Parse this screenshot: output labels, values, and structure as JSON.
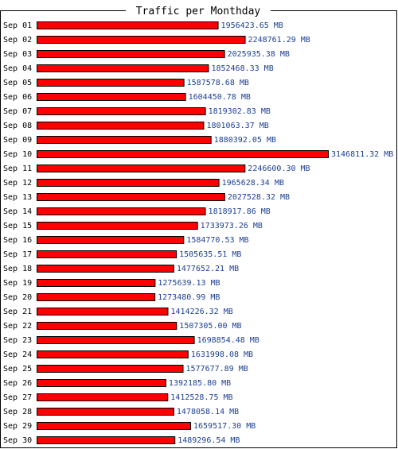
{
  "chart_data": {
    "type": "bar",
    "orientation": "horizontal",
    "title": "Traffic per Monthday",
    "unit": "MB",
    "categories": [
      "Sep 01",
      "Sep 02",
      "Sep 03",
      "Sep 04",
      "Sep 05",
      "Sep 06",
      "Sep 07",
      "Sep 08",
      "Sep 09",
      "Sep 10",
      "Sep 11",
      "Sep 12",
      "Sep 13",
      "Sep 14",
      "Sep 15",
      "Sep 16",
      "Sep 17",
      "Sep 18",
      "Sep 19",
      "Sep 20",
      "Sep 21",
      "Sep 22",
      "Sep 23",
      "Sep 24",
      "Sep 25",
      "Sep 26",
      "Sep 27",
      "Sep 28",
      "Sep 29",
      "Sep 30"
    ],
    "values": [
      1956423.65,
      2248761.29,
      2025935.38,
      1852468.33,
      1587578.68,
      1604450.78,
      1819302.83,
      1801063.37,
      1880392.05,
      3146811.32,
      2246600.3,
      1965628.34,
      2027528.32,
      1818917.86,
      1733973.26,
      1584770.53,
      1505635.51,
      1477652.21,
      1275639.13,
      1273480.99,
      1414226.32,
      1507305.0,
      1698854.48,
      1631998.08,
      1577677.89,
      1392185.8,
      1412528.75,
      1478058.14,
      1659517.3,
      1489296.54
    ],
    "value_labels": [
      "1956423.65 MB",
      "2248761.29 MB",
      "2025935.38 MB",
      "1852468.33 MB",
      "1587578.68 MB",
      "1604450.78 MB",
      "1819302.83 MB",
      "1801063.37 MB",
      "1880392.05 MB",
      "3146811.32 MB",
      "2246600.30 MB",
      "1965628.34 MB",
      "2027528.32 MB",
      "1818917.86 MB",
      "1733973.26 MB",
      "1584770.53 MB",
      "1505635.51 MB",
      "1477652.21 MB",
      "1275639.13 MB",
      "1273480.99 MB",
      "1414226.32 MB",
      "1507305.00 MB",
      "1698854.48 MB",
      "1631998.08 MB",
      "1577677.89 MB",
      "1392185.80 MB",
      "1412528.75 MB",
      "1478058.14 MB",
      "1659517.30 MB",
      "1489296.54 MB"
    ],
    "xlim": [
      0,
      3146811.32
    ],
    "grid": false,
    "legend": "none",
    "colors": {
      "bar": "#ff0000",
      "bar_stroke": "#000000",
      "value_text": "#1c3f95",
      "frame": "#000000"
    }
  }
}
